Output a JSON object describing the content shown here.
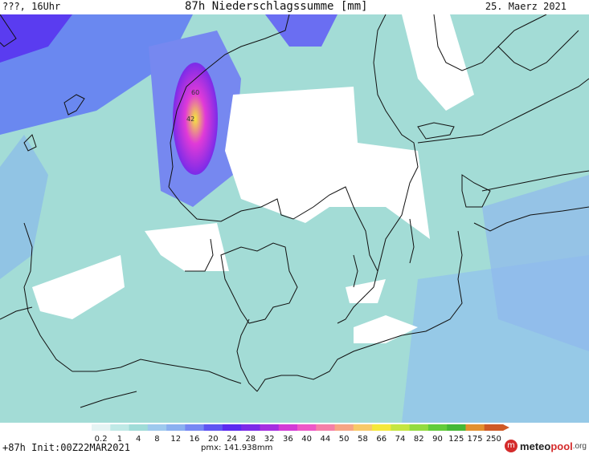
{
  "header": {
    "left": "???, 16Uhr",
    "title": "87h Niederschlagssumme [mm]",
    "right": "25. Maerz 2021"
  },
  "colors": {
    "sea_light": "#9fd9d9",
    "land_light": "#aee3df",
    "none": "#ffffff",
    "blue_light": "#8fb3ea",
    "blue_mid": "#6a7ef2",
    "violet": "#5a2bf0",
    "magenta": "#e03ad8",
    "yellow": "#f5e83a",
    "coast": "#111111"
  },
  "legend": {
    "ticks": [
      "0.2",
      "1",
      "4",
      "8",
      "12",
      "16",
      "20",
      "24",
      "28",
      "32",
      "36",
      "40",
      "44",
      "50",
      "58",
      "66",
      "74",
      "82",
      "90",
      "125",
      "175",
      "250"
    ],
    "colors": [
      "#e6f4f4",
      "#bfe9e6",
      "#a0dcd8",
      "#9ec9ee",
      "#8bb0f0",
      "#7788f3",
      "#5f55f2",
      "#5b2bf0",
      "#7b2be8",
      "#a52ee0",
      "#d33ad6",
      "#ee57c7",
      "#f57fa8",
      "#f7a584",
      "#f8c968",
      "#f5e83a",
      "#c5e640",
      "#93db3f",
      "#62cc3a",
      "#45b835",
      "#e3902f",
      "#cf5a26"
    ]
  },
  "footer": {
    "run": "+87h Init:00Z22MAR2021",
    "pmx": "pmx: 141.938mm",
    "logo_a": "meteo",
    "logo_b": "pool",
    "logo_c": ".org"
  },
  "map_labels": {
    "v1": "60",
    "v2": "42"
  }
}
